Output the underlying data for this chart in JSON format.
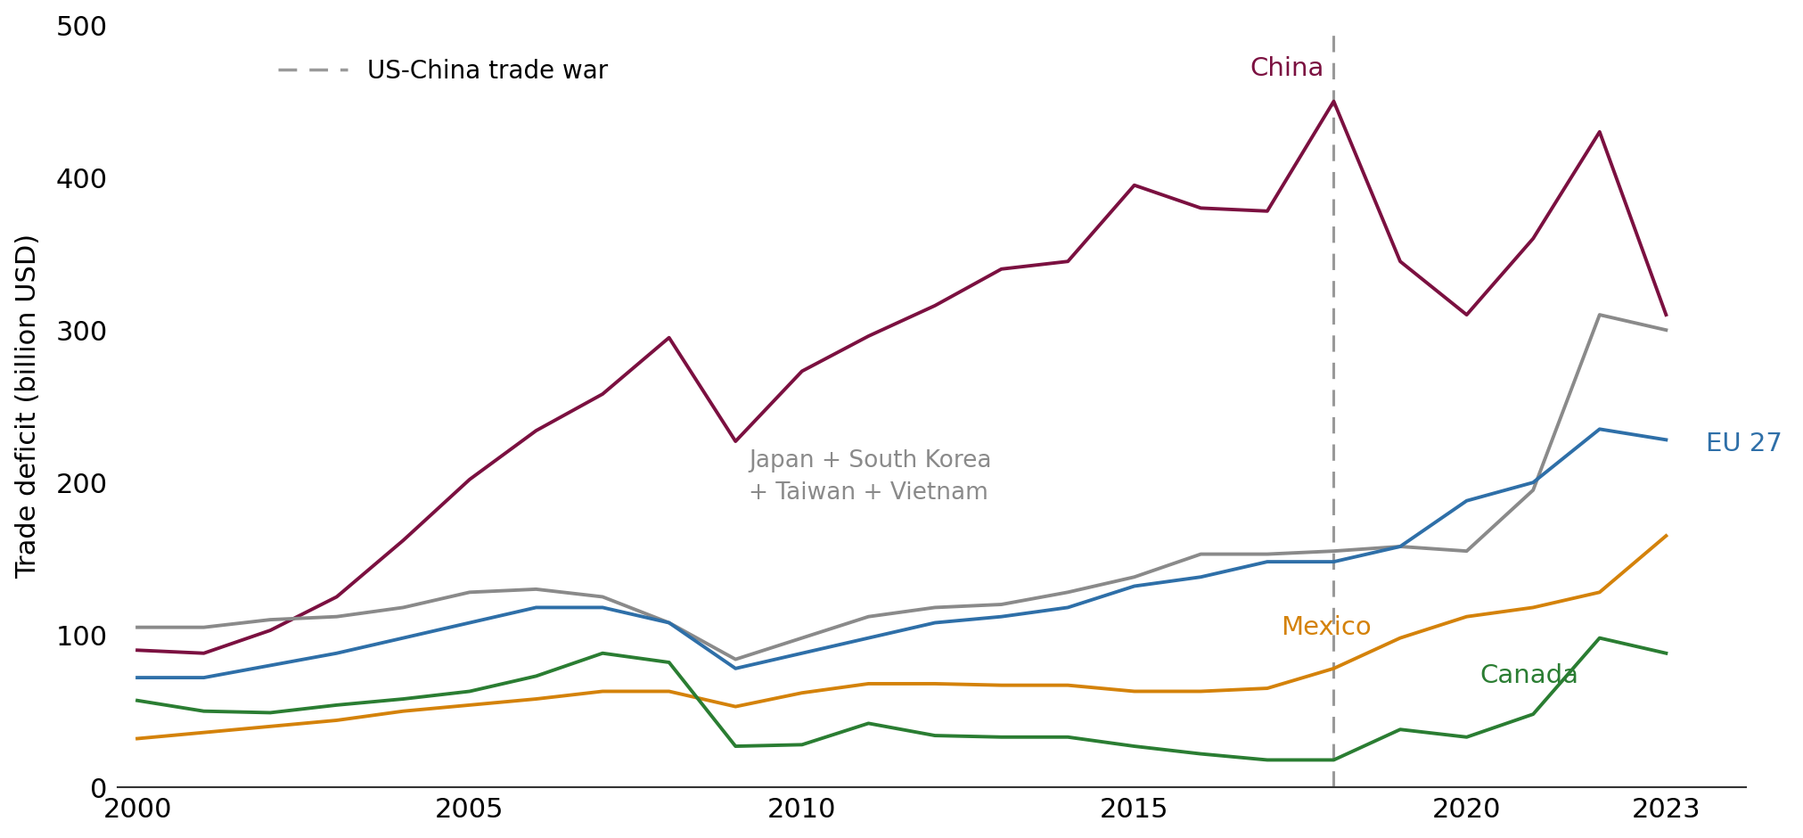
{
  "years": [
    2000,
    2001,
    2002,
    2003,
    2004,
    2005,
    2006,
    2007,
    2008,
    2009,
    2010,
    2011,
    2012,
    2013,
    2014,
    2015,
    2016,
    2017,
    2018,
    2019,
    2020,
    2021,
    2022,
    2023
  ],
  "china": [
    90,
    88,
    103,
    125,
    162,
    202,
    234,
    258,
    295,
    227,
    273,
    296,
    316,
    340,
    345,
    395,
    380,
    378,
    450,
    345,
    310,
    360,
    430,
    310
  ],
  "japan_sk_taiwan_vn": [
    105,
    105,
    110,
    112,
    118,
    128,
    130,
    125,
    108,
    84,
    98,
    112,
    118,
    120,
    128,
    138,
    153,
    153,
    155,
    158,
    155,
    195,
    310,
    300
  ],
  "eu27": [
    72,
    72,
    80,
    88,
    98,
    108,
    118,
    118,
    108,
    78,
    88,
    98,
    108,
    112,
    118,
    132,
    138,
    148,
    148,
    158,
    188,
    200,
    235,
    228
  ],
  "mexico": [
    32,
    36,
    40,
    44,
    50,
    54,
    58,
    63,
    63,
    53,
    62,
    68,
    68,
    67,
    67,
    63,
    63,
    65,
    78,
    98,
    112,
    118,
    128,
    165
  ],
  "canada": [
    57,
    50,
    49,
    54,
    58,
    63,
    73,
    88,
    82,
    27,
    28,
    42,
    34,
    33,
    33,
    27,
    22,
    18,
    18,
    38,
    33,
    48,
    98,
    88
  ],
  "trade_war_year": 2018,
  "trade_war_label": "US-China trade war",
  "ylabel": "Trade deficit (billion USD)",
  "ylim": [
    0,
    500
  ],
  "yticks": [
    0,
    100,
    200,
    300,
    400,
    500
  ],
  "xlim_min": 1999.7,
  "xlim_max": 2024.2,
  "xticks": [
    2000,
    2005,
    2010,
    2015,
    2020,
    2023
  ],
  "colors": {
    "china": "#7b1040",
    "japan_sk_taiwan_vn": "#8a8a8a",
    "eu27": "#2e6fa8",
    "mexico": "#d4820a",
    "canada": "#2a7d32"
  },
  "label_china": "China",
  "label_jktv": "Japan + South Korea\n+ Taiwan + Vietnam",
  "label_eu27": "EU 27",
  "label_mexico": "Mexico",
  "label_canada": "Canada",
  "linewidth": 2.8,
  "background_color": "#ffffff",
  "legend_line_color": "#999999",
  "axis_fontsize": 22,
  "label_fontsize": 21,
  "jktv_fontsize": 19,
  "legend_fontsize": 20
}
